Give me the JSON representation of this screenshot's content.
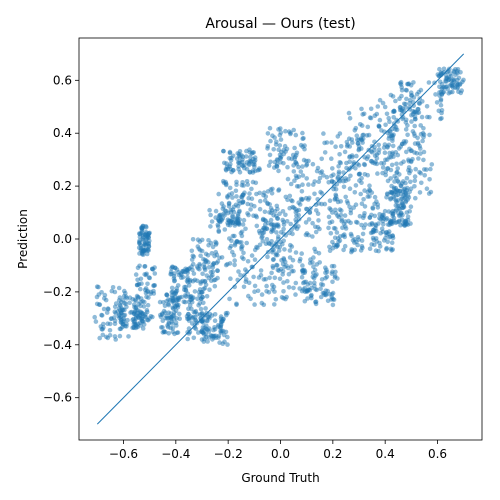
{
  "chart_data": {
    "type": "scatter",
    "title": "Arousal — Ours (test)",
    "xlabel": "Ground Truth",
    "ylabel": "Prediction",
    "xlim": [
      -0.77,
      0.77
    ],
    "ylim": [
      -0.76,
      0.76
    ],
    "xticks": [
      -0.6,
      -0.4,
      -0.2,
      0.0,
      0.2,
      0.4,
      0.6
    ],
    "yticks": [
      -0.6,
      -0.4,
      -0.2,
      0.0,
      0.2,
      0.4,
      0.6
    ],
    "xtick_labels": [
      "−0.6",
      "−0.4",
      "−0.2",
      "0.0",
      "0.2",
      "0.4",
      "0.6"
    ],
    "ytick_labels": [
      "−0.6",
      "−0.4",
      "−0.2",
      "0.0",
      "0.2",
      "0.4",
      "0.6"
    ],
    "grid": false,
    "marker_color": "#1f77b4",
    "marker_alpha": 0.5,
    "reference_line": {
      "name": "identity",
      "x": [
        -0.7,
        0.7
      ],
      "y": [
        -0.7,
        0.7
      ],
      "color": "#1f77b4"
    },
    "clusters": [
      {
        "x": [
          -0.71,
          -0.58
        ],
        "y": [
          -0.38,
          -0.18
        ]
      },
      {
        "x": [
          -0.62,
          -0.52
        ],
        "y": [
          -0.34,
          -0.22
        ]
      },
      {
        "x": [
          -0.56,
          -0.48
        ],
        "y": [
          -0.32,
          -0.1
        ]
      },
      {
        "x": [
          -0.54,
          -0.5
        ],
        "y": [
          -0.06,
          0.05
        ]
      },
      {
        "x": [
          -0.46,
          -0.38
        ],
        "y": [
          -0.36,
          -0.2
        ]
      },
      {
        "x": [
          -0.42,
          -0.34
        ],
        "y": [
          -0.25,
          -0.1
        ]
      },
      {
        "x": [
          -0.36,
          -0.28
        ],
        "y": [
          -0.38,
          -0.2
        ]
      },
      {
        "x": [
          -0.34,
          -0.24
        ],
        "y": [
          -0.2,
          0.0
        ]
      },
      {
        "x": [
          -0.3,
          -0.2
        ],
        "y": [
          -0.4,
          -0.28
        ]
      },
      {
        "x": [
          -0.28,
          -0.14
        ],
        "y": [
          -0.1,
          0.12
        ]
      },
      {
        "x": [
          -0.24,
          -0.1
        ],
        "y": [
          0.05,
          0.22
        ]
      },
      {
        "x": [
          -0.22,
          -0.08
        ],
        "y": [
          0.25,
          0.34
        ]
      },
      {
        "x": [
          -0.2,
          0.05
        ],
        "y": [
          -0.25,
          -0.05
        ]
      },
      {
        "x": [
          -0.18,
          0.02
        ],
        "y": [
          -0.05,
          0.15
        ]
      },
      {
        "x": [
          -0.1,
          0.1
        ],
        "y": [
          0.0,
          0.25
        ]
      },
      {
        "x": [
          -0.05,
          0.15
        ],
        "y": [
          -0.22,
          0.05
        ]
      },
      {
        "x": [
          -0.05,
          0.1
        ],
        "y": [
          0.25,
          0.42
        ]
      },
      {
        "x": [
          0.05,
          0.25
        ],
        "y": [
          0.05,
          0.3
        ]
      },
      {
        "x": [
          0.08,
          0.22
        ],
        "y": [
          -0.25,
          -0.1
        ]
      },
      {
        "x": [
          0.15,
          0.35
        ],
        "y": [
          0.15,
          0.4
        ]
      },
      {
        "x": [
          0.18,
          0.32
        ],
        "y": [
          -0.05,
          0.15
        ]
      },
      {
        "x": [
          0.25,
          0.45
        ],
        "y": [
          0.25,
          0.5
        ]
      },
      {
        "x": [
          0.3,
          0.5
        ],
        "y": [
          0.05,
          0.3
        ]
      },
      {
        "x": [
          0.35,
          0.55
        ],
        "y": [
          0.3,
          0.55
        ]
      },
      {
        "x": [
          0.4,
          0.58
        ],
        "y": [
          0.15,
          0.4
        ]
      },
      {
        "x": [
          0.45,
          0.62
        ],
        "y": [
          0.45,
          0.6
        ]
      },
      {
        "x": [
          0.6,
          0.7
        ],
        "y": [
          0.55,
          0.65
        ]
      },
      {
        "x": [
          0.34,
          0.44
        ],
        "y": [
          -0.05,
          0.1
        ]
      },
      {
        "x": [
          0.42,
          0.5
        ],
        "y": [
          0.05,
          0.2
        ]
      }
    ]
  }
}
